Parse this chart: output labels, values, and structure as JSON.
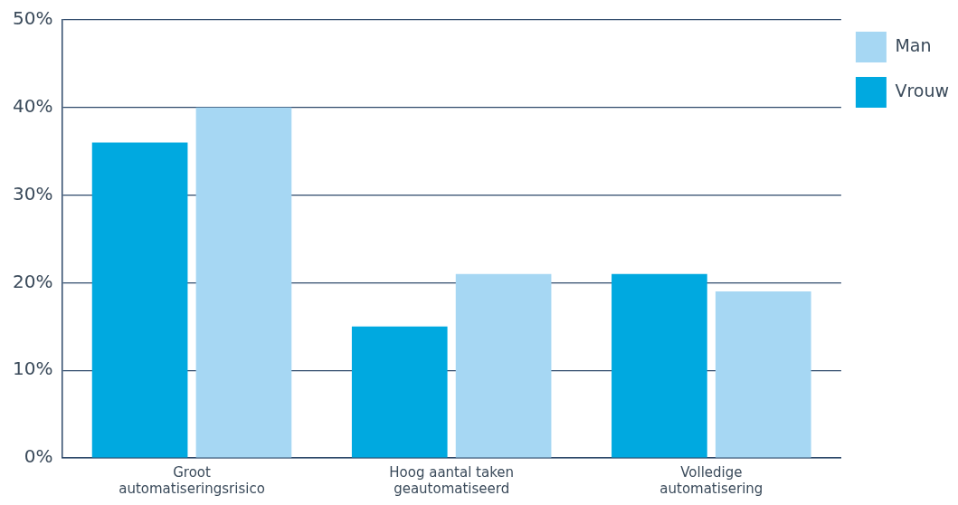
{
  "chart_data": {
    "type": "bar",
    "categories": [
      "Groot automatiseringsrisico",
      "Hoog aantal taken geautomatiseerd",
      "Volledige automatisering"
    ],
    "series": [
      {
        "name": "Vrouw",
        "color": "#00a9e0",
        "values": [
          36,
          15,
          21
        ]
      },
      {
        "name": "Man",
        "color": "#a6d7f3",
        "values": [
          40,
          21,
          19
        ]
      }
    ],
    "ylim": [
      0,
      50
    ],
    "yticks": [
      {
        "value": 0,
        "label": "0%"
      },
      {
        "value": 10,
        "label": "10%"
      },
      {
        "value": 20,
        "label": "20%"
      },
      {
        "value": 30,
        "label": "30%"
      },
      {
        "value": 40,
        "label": "40%"
      },
      {
        "value": 50,
        "label": "50%"
      }
    ],
    "grid": "y",
    "legend": "top right"
  }
}
